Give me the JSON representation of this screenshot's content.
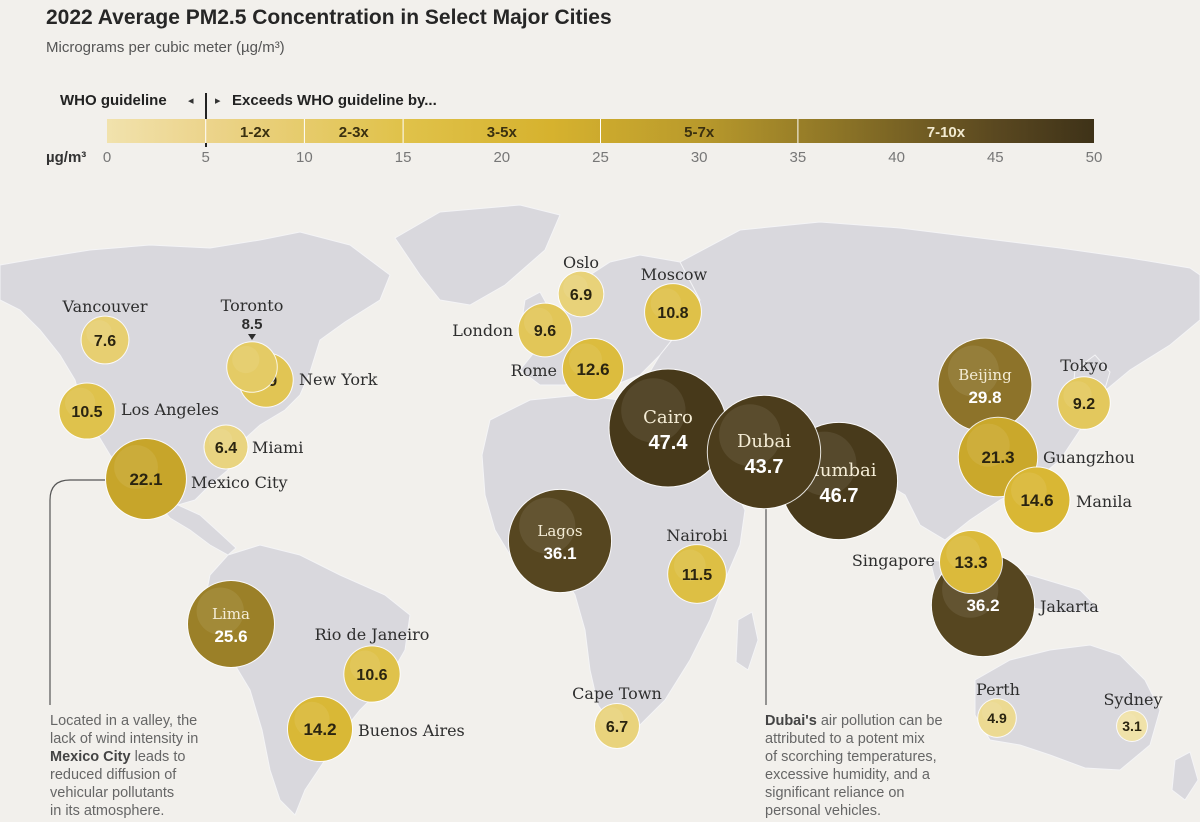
{
  "header": {
    "title": "2022 Average PM2.5 Concentration in Select Major Cities",
    "subtitle": "Micrograms per cubic meter (µg/m³)"
  },
  "legend": {
    "who_label": "WHO guideline",
    "exceeds_label": "Exceeds WHO guideline by...",
    "unit": "µg/m³",
    "ticks": [
      "0",
      "5",
      "10",
      "15",
      "20",
      "25",
      "30",
      "35",
      "40",
      "45",
      "50"
    ],
    "segments": [
      {
        "from": 0,
        "to": 5,
        "label": "",
        "color": "#ecd99a"
      },
      {
        "from": 5,
        "to": 10,
        "label": "1-2x",
        "color": "#e4c65e"
      },
      {
        "from": 10,
        "to": 15,
        "label": "2-3x",
        "color": "#dcb93a"
      },
      {
        "from": 15,
        "to": 25,
        "label": "3-5x",
        "color": "#d6b22e"
      },
      {
        "from": 25,
        "to": 35,
        "label": "5-7x",
        "color": "#b99a2c"
      },
      {
        "from": 35,
        "to": 50,
        "label": "7-10x",
        "color": "#4a3c1c"
      }
    ]
  },
  "cities": [
    {
      "name": "Vancouver",
      "value": "7.6",
      "label_pos": "above"
    },
    {
      "name": "Toronto",
      "value": "8.5",
      "label_pos": "above"
    },
    {
      "name": "New York",
      "value": "9.9",
      "label_pos": "right"
    },
    {
      "name": "Los Angeles",
      "value": "10.5",
      "label_pos": "right"
    },
    {
      "name": "Miami",
      "value": "6.4",
      "label_pos": "right"
    },
    {
      "name": "Mexico City",
      "value": "22.1",
      "label_pos": "right"
    },
    {
      "name": "Lima",
      "value": "25.6",
      "label_pos": "inside"
    },
    {
      "name": "Rio de Janeiro",
      "value": "10.6",
      "label_pos": "above"
    },
    {
      "name": "Buenos Aires",
      "value": "14.2",
      "label_pos": "right"
    },
    {
      "name": "Oslo",
      "value": "6.9",
      "label_pos": "above"
    },
    {
      "name": "London",
      "value": "9.6",
      "label_pos": "left"
    },
    {
      "name": "Moscow",
      "value": "10.8",
      "label_pos": "above"
    },
    {
      "name": "Rome",
      "value": "12.6",
      "label_pos": "left"
    },
    {
      "name": "Cairo",
      "value": "47.4",
      "label_pos": "inside"
    },
    {
      "name": "Dubai",
      "value": "43.7",
      "label_pos": "inside"
    },
    {
      "name": "Mumbai",
      "value": "46.7",
      "label_pos": "inside"
    },
    {
      "name": "Lagos",
      "value": "36.1",
      "label_pos": "inside"
    },
    {
      "name": "Nairobi",
      "value": "11.5",
      "label_pos": "above"
    },
    {
      "name": "Cape Town",
      "value": "6.7",
      "label_pos": "above"
    },
    {
      "name": "Beijing",
      "value": "29.8",
      "label_pos": "inside"
    },
    {
      "name": "Tokyo",
      "value": "9.2",
      "label_pos": "above"
    },
    {
      "name": "Guangzhou",
      "value": "21.3",
      "label_pos": "right"
    },
    {
      "name": "Manila",
      "value": "14.6",
      "label_pos": "right"
    },
    {
      "name": "Singapore",
      "value": "13.3",
      "label_pos": "left"
    },
    {
      "name": "Jakarta",
      "value": "36.2",
      "label_pos": "right"
    },
    {
      "name": "Perth",
      "value": "4.9",
      "label_pos": "above"
    },
    {
      "name": "Sydney",
      "value": "3.1",
      "label_pos": "above"
    }
  ],
  "notes": {
    "mexico": {
      "line1": "Located in a valley, the",
      "line2": "lack of wind intensity in",
      "city": "Mexico City",
      "line3": " leads to",
      "line4": "reduced diffusion of",
      "line5": "vehicular pollutants",
      "line6": "in its atmosphere."
    },
    "dubai": {
      "city": "Dubai's",
      "line1": " air pollution can be",
      "line2": "attributed to a potent mix",
      "line3": "of scorching temperatures,",
      "line4": "excessive humidity, and a",
      "line5": "significant reliance on",
      "line6": "personal vehicles."
    }
  },
  "colors": {
    "background": "#f2f0ec",
    "land": "#d9d8dd",
    "borders": "#f4f4f6",
    "low": "#ecd99a",
    "high": "#3e3218"
  }
}
